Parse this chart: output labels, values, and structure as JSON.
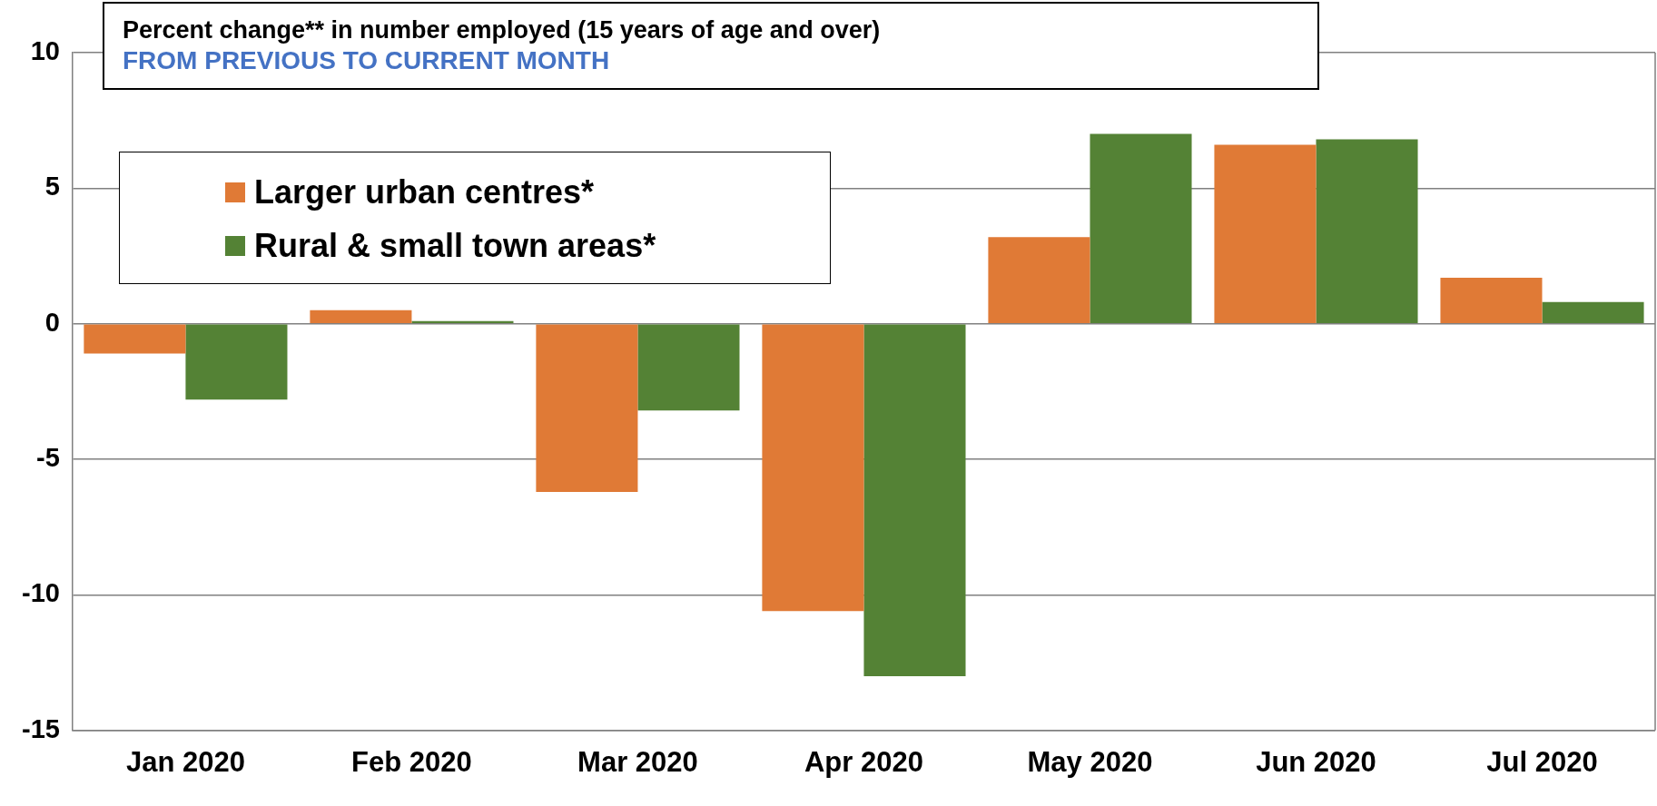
{
  "chart_data": {
    "type": "bar",
    "title": "Percent change** in number employed (15 years of age and over)",
    "subtitle": "FROM PREVIOUS TO CURRENT MONTH",
    "categories": [
      "Jan 2020",
      "Feb 2020",
      "Mar 2020",
      "Apr 2020",
      "May 2020",
      "Jun 2020",
      "Jul 2020"
    ],
    "series": [
      {
        "name": "Larger urban centres*",
        "color": "#e07a36",
        "values": [
          -1.1,
          0.5,
          -6.2,
          -10.6,
          3.2,
          6.6,
          1.7
        ]
      },
      {
        "name": "Rural & small town areas*",
        "color": "#548235",
        "values": [
          -2.8,
          0.1,
          -3.2,
          -13.0,
          7.0,
          6.8,
          0.8
        ]
      }
    ],
    "ylim": [
      -15,
      10
    ],
    "yticks": [
      -15,
      -10,
      -5,
      0,
      5,
      10
    ],
    "grid": "y",
    "legend": "top left"
  }
}
